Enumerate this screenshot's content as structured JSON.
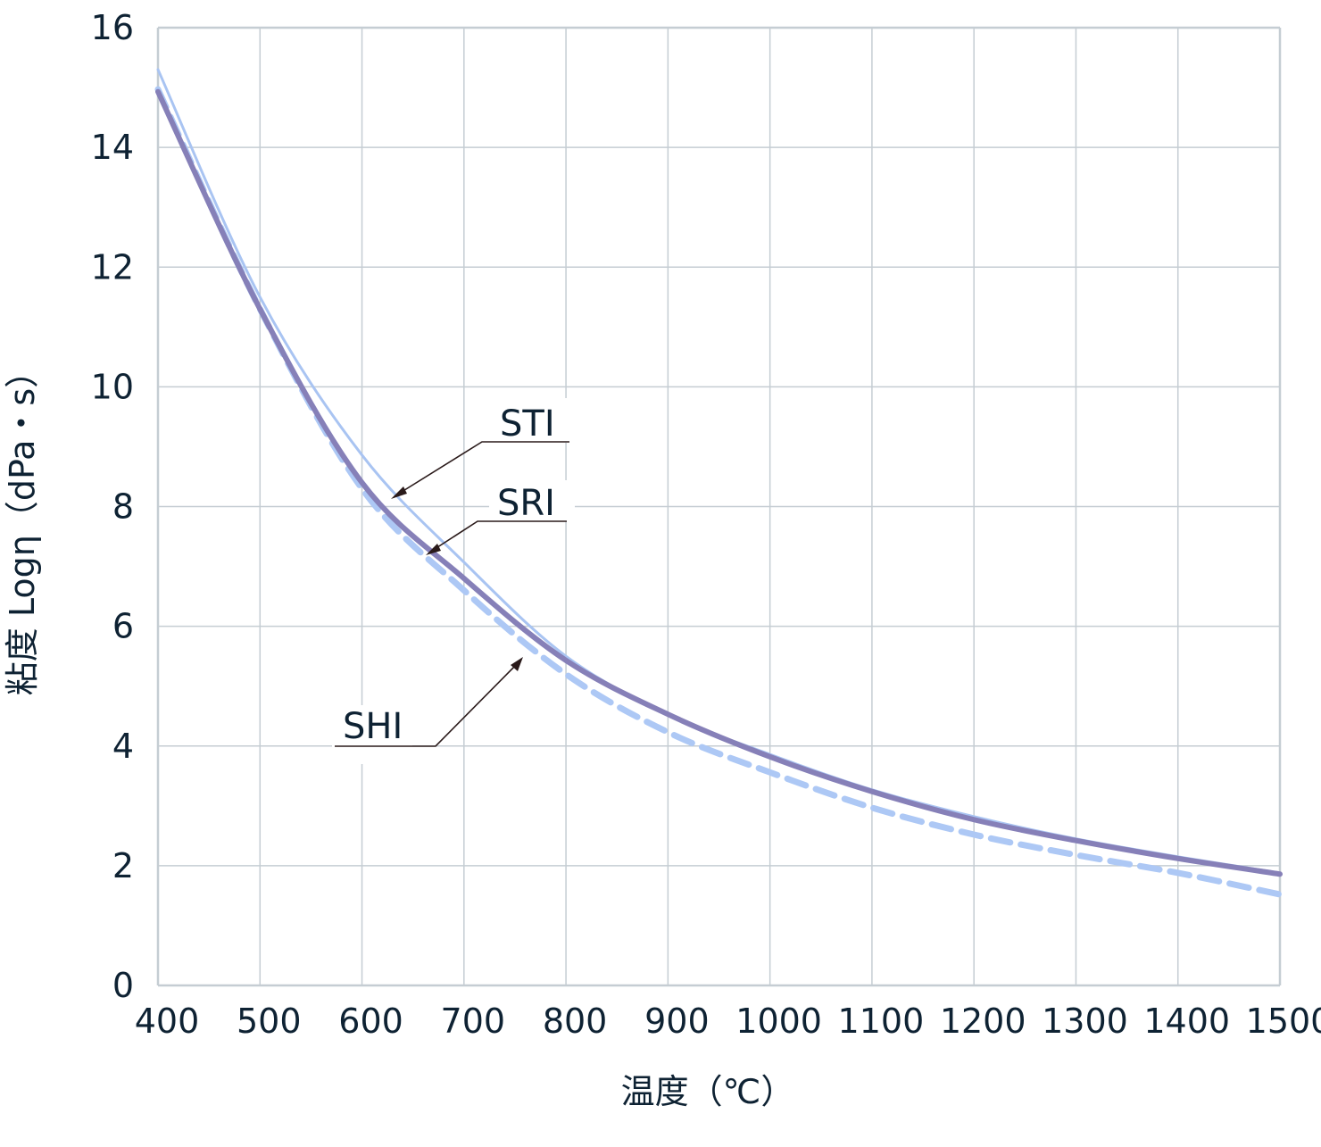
{
  "chart_data": {
    "type": "line",
    "title": "",
    "xlabel": "温度（℃）",
    "ylabel": "粘度 Logη（dPa・s）",
    "xlim": [
      400,
      1500
    ],
    "ylim": [
      0,
      16
    ],
    "x_ticks": [
      "400",
      "500",
      "600",
      "700",
      "800",
      "900",
      "1000",
      "1100",
      "1200",
      "1300",
      "1400",
      "1500"
    ],
    "y_ticks": [
      "0",
      "2",
      "4",
      "6",
      "8",
      "10",
      "12",
      "14",
      "16"
    ],
    "grid": true,
    "x": [
      400,
      500,
      600,
      700,
      800,
      900,
      1000,
      1100,
      1200,
      1300,
      1400,
      1500
    ],
    "series": [
      {
        "name": "STI",
        "color": "#a9c4f2",
        "style": "thin-solid",
        "values": [
          15.3,
          11.5,
          8.86,
          7.07,
          5.5,
          4.53,
          3.86,
          3.27,
          2.82,
          2.45,
          2.15,
          1.88
        ]
      },
      {
        "name": "SRI",
        "color": "#8680b8",
        "style": "thick-solid",
        "values": [
          14.93,
          11.3,
          8.4,
          6.8,
          5.43,
          4.53,
          3.82,
          3.24,
          2.77,
          2.42,
          2.12,
          1.86
        ]
      },
      {
        "name": "SHI",
        "color": "#adc8f5",
        "style": "dashed",
        "values": [
          14.97,
          11.3,
          8.3,
          6.6,
          5.2,
          4.23,
          3.56,
          2.97,
          2.52,
          2.18,
          1.88,
          1.52
        ]
      }
    ],
    "annotations": [
      "STI",
      "SRI",
      "SHI"
    ],
    "gridline_color": "#c5cdd3"
  }
}
